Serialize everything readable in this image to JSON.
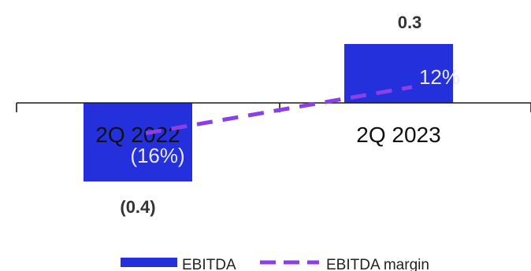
{
  "chart_data": {
    "type": "bar",
    "categories": [
      "2Q 2022",
      "2Q 2023"
    ],
    "series": [
      {
        "name": "EBITDA",
        "values": [
          -0.4,
          0.3
        ],
        "value_labels": [
          "(0.4)",
          "0.3"
        ],
        "color": "#2430DC"
      },
      {
        "name": "EBITDA margin",
        "values": [
          -16,
          12
        ],
        "value_labels": [
          "(16%)",
          "12%"
        ],
        "color": "#8B3FE6"
      }
    ],
    "legend": {
      "position": "bottom-center"
    },
    "ylim": [
      -0.4,
      0.3
    ],
    "grid": false
  }
}
